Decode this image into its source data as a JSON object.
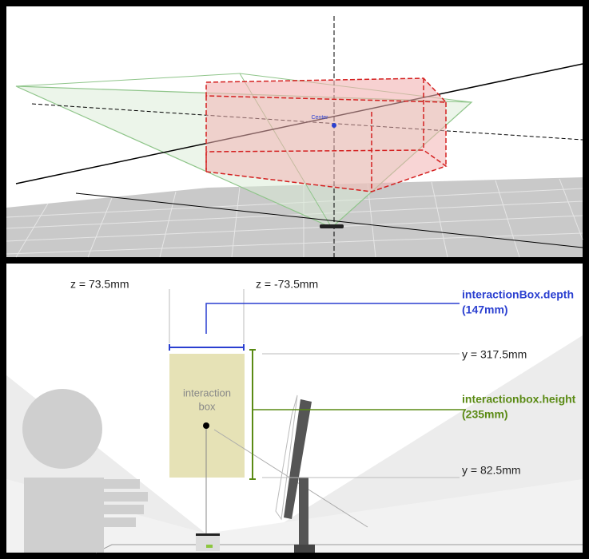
{
  "top_view": {
    "center_label": "Center"
  },
  "side_view": {
    "z_front": "z = 73.5mm",
    "z_back": "z = -73.5mm",
    "depth_label": "interactionBox.depth",
    "depth_value": "(147mm)",
    "y_top": "y = 317.5mm",
    "height_label": "interactionbox.height",
    "height_value": "(235mm)",
    "y_bottom": "y = 82.5mm",
    "box_label_line1": "interaction",
    "box_label_line2": "box"
  }
}
